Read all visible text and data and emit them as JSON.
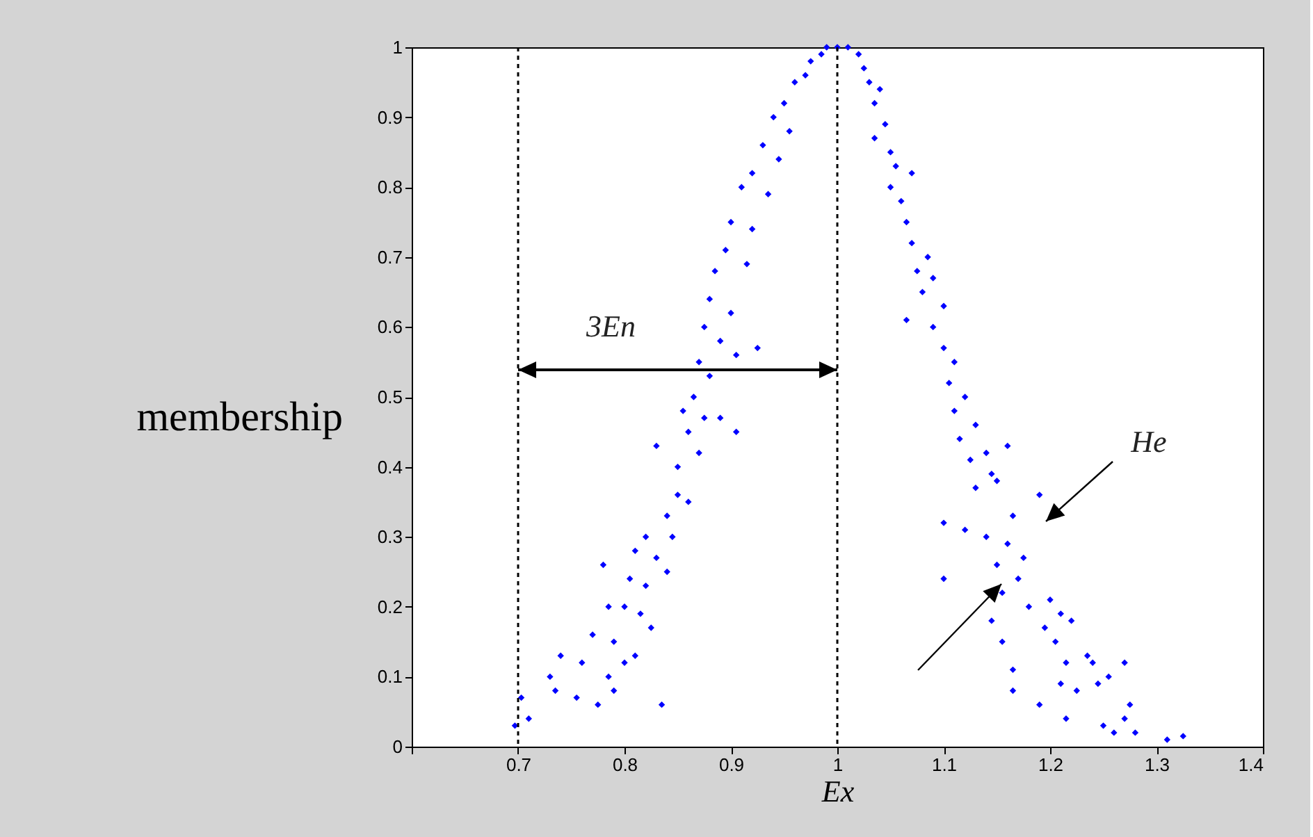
{
  "chart_data": {
    "type": "scatter",
    "xlabel": "Ex",
    "ylabel": "membership",
    "xlim": [
      0.6,
      1.4
    ],
    "xticks": [
      {
        "value": 0.6,
        "label": null
      },
      0.7,
      0.8,
      0.9,
      1,
      1.1,
      1.2,
      1.3,
      1.4
    ],
    "ylim": [
      0,
      1
    ],
    "yticks": [
      0,
      0.1,
      0.2,
      0.3,
      0.4,
      0.5,
      0.6,
      0.7,
      0.8,
      0.9,
      1
    ],
    "grid": false,
    "marker": "diamond",
    "ref_lines": [
      {
        "axis": "x",
        "value": 0.7,
        "line_style": "dashed",
        "color": "#000000"
      },
      {
        "axis": "x",
        "value": 1,
        "line_style": "dashed",
        "color": "#000000"
      }
    ],
    "annotations": [
      "3En",
      "He"
    ],
    "series": [
      {
        "color": "#0000ff",
        "x": [
          0.697,
          0.703,
          0.71,
          0.73,
          0.735,
          0.74,
          0.755,
          0.76,
          0.77,
          0.775,
          0.78,
          0.785,
          0.785,
          0.79,
          0.79,
          0.8,
          0.8,
          0.805,
          0.81,
          0.81,
          0.815,
          0.82,
          0.82,
          0.825,
          0.83,
          0.835,
          0.83,
          0.84,
          0.84,
          0.845,
          0.85,
          0.85,
          0.855,
          0.86,
          0.86,
          0.865,
          0.87,
          0.87,
          0.875,
          0.875,
          0.88,
          0.88,
          0.885,
          0.89,
          0.89,
          0.895,
          0.9,
          0.9,
          0.905,
          0.905,
          0.91,
          0.915,
          0.92,
          0.92,
          0.925,
          0.93,
          0.935,
          0.94,
          0.945,
          0.95,
          0.955,
          0.96,
          0.97,
          0.975,
          0.985,
          0.99,
          1.0,
          1.01,
          1.02,
          1.025,
          1.03,
          1.035,
          1.04,
          1.035,
          1.045,
          1.05,
          1.05,
          1.055,
          1.06,
          1.065,
          1.07,
          1.07,
          1.075,
          1.08,
          1.085,
          1.09,
          1.09,
          1.1,
          1.1,
          1.065,
          1.105,
          1.11,
          1.11,
          1.115,
          1.12,
          1.125,
          1.13,
          1.13,
          1.14,
          1.145,
          1.15,
          1.16,
          1.1,
          1.1,
          1.12,
          1.14,
          1.15,
          1.155,
          1.16,
          1.165,
          1.17,
          1.175,
          1.18,
          1.19,
          1.195,
          1.2,
          1.205,
          1.21,
          1.215,
          1.22,
          1.145,
          1.155,
          1.165,
          1.165,
          1.19,
          1.21,
          1.215,
          1.225,
          1.235,
          1.24,
          1.245,
          1.25,
          1.255,
          1.26,
          1.27,
          1.27,
          1.275,
          1.28,
          1.31,
          1.325
        ],
        "values": [
          0.03,
          0.07,
          0.04,
          0.1,
          0.08,
          0.13,
          0.07,
          0.12,
          0.16,
          0.06,
          0.26,
          0.1,
          0.2,
          0.08,
          0.15,
          0.12,
          0.2,
          0.24,
          0.13,
          0.28,
          0.19,
          0.3,
          0.23,
          0.17,
          0.27,
          0.06,
          0.43,
          0.33,
          0.25,
          0.3,
          0.36,
          0.4,
          0.48,
          0.45,
          0.35,
          0.5,
          0.42,
          0.55,
          0.47,
          0.6,
          0.53,
          0.64,
          0.68,
          0.58,
          0.47,
          0.71,
          0.62,
          0.75,
          0.45,
          0.56,
          0.8,
          0.69,
          0.82,
          0.74,
          0.57,
          0.86,
          0.79,
          0.9,
          0.84,
          0.92,
          0.88,
          0.95,
          0.96,
          0.98,
          0.99,
          1.0,
          1.0,
          1.0,
          0.99,
          0.97,
          0.95,
          0.92,
          0.94,
          0.87,
          0.89,
          0.85,
          0.8,
          0.83,
          0.78,
          0.75,
          0.72,
          0.82,
          0.68,
          0.65,
          0.7,
          0.6,
          0.67,
          0.57,
          0.63,
          0.61,
          0.52,
          0.48,
          0.55,
          0.44,
          0.5,
          0.41,
          0.46,
          0.37,
          0.42,
          0.39,
          0.38,
          0.43,
          0.32,
          0.24,
          0.31,
          0.3,
          0.26,
          0.22,
          0.29,
          0.33,
          0.24,
          0.27,
          0.2,
          0.36,
          0.17,
          0.21,
          0.15,
          0.19,
          0.12,
          0.18,
          0.18,
          0.15,
          0.11,
          0.08,
          0.06,
          0.09,
          0.04,
          0.08,
          0.13,
          0.12,
          0.09,
          0.03,
          0.1,
          0.02,
          0.04,
          0.12,
          0.06,
          0.02,
          0.01,
          0.015
        ]
      }
    ]
  }
}
